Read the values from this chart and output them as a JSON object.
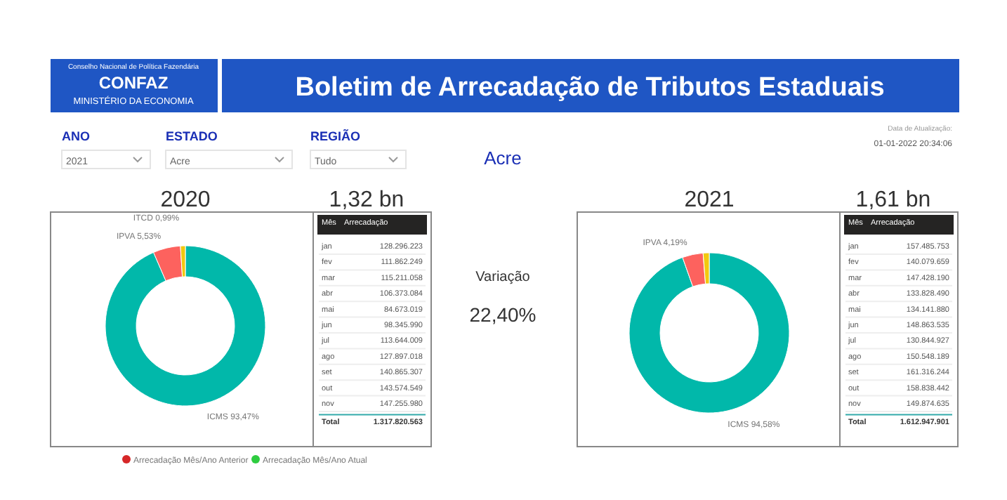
{
  "chart_data": [
    {
      "type": "other",
      "title": "Boletim de Arrecadação de Tributos Estaduais",
      "annotations": [
        "Conselho Nacional de Política Fazendária",
        "CONFAZ",
        "MINISTÉRIO DA ECONOMIA",
        "ANO",
        "2021",
        "ESTADO",
        "Acre",
        "REGIÃO",
        "Tudo",
        "Acre",
        "Data de Atualização:",
        "01-01-2022 20:34:06",
        "Variação",
        "22,40%"
      ],
      "series": [
        {
          "name": "Arrecadação Mês/Ano Anterior",
          "color": "#d62728"
        },
        {
          "name": "Arrecadação Mês/Ano Atual",
          "color": "#2ecc40"
        }
      ]
    },
    {
      "type": "donut",
      "title": "2020",
      "subtitle": "1,32 bn",
      "categories": [
        "ICMS",
        "IPVA",
        "ITCD"
      ],
      "values": [
        93.47,
        5.53,
        0.99
      ],
      "value_labels": [
        "93,47%",
        "5,53%",
        "0,99%"
      ],
      "colors": [
        "#01b8aa",
        "#fd625e",
        "#f2c80f"
      ]
    },
    {
      "type": "other",
      "xlabel": "Mês",
      "ylabel": "Arrecadação",
      "categories": [
        "jan",
        "fev",
        "mar",
        "abr",
        "mai",
        "jun",
        "jul",
        "ago",
        "set",
        "out",
        "nov"
      ],
      "value_labels": [
        "128.296.223",
        "111.862.249",
        "115.211.058",
        "106.373.084",
        "84.673.019",
        "98.345.990",
        "113.644.009",
        "127.897.018",
        "140.865.307",
        "143.574.549",
        "147.255.980"
      ],
      "annotations": [
        "Total"
      ],
      "totals": [
        "1.317.820.563"
      ]
    },
    {
      "type": "donut",
      "title": "2021",
      "subtitle": "1,61 bn",
      "categories": [
        "ICMS",
        "IPVA",
        null
      ],
      "values": [
        94.58,
        4.19,
        1.23
      ],
      "value_labels": [
        "94,58%",
        "4,19%",
        null
      ],
      "colors": [
        "#01b8aa",
        "#fd625e",
        "#f2c80f"
      ]
    },
    {
      "type": "other",
      "xlabel": "Mês",
      "ylabel": "Arrecadação",
      "categories": [
        "jan",
        "fev",
        "mar",
        "abr",
        "mai",
        "jun",
        "jul",
        "ago",
        "set",
        "out",
        "nov"
      ],
      "value_labels": [
        "157.485.753",
        "140.079.659",
        "147.428.190",
        "133.828.490",
        "134.141.880",
        "148.863.535",
        "130.844.927",
        "150.548.189",
        "161.316.244",
        "158.838.442",
        "149.874.635"
      ],
      "annotations": [
        "Total"
      ],
      "totals": [
        "1.612.947.901"
      ]
    }
  ]
}
